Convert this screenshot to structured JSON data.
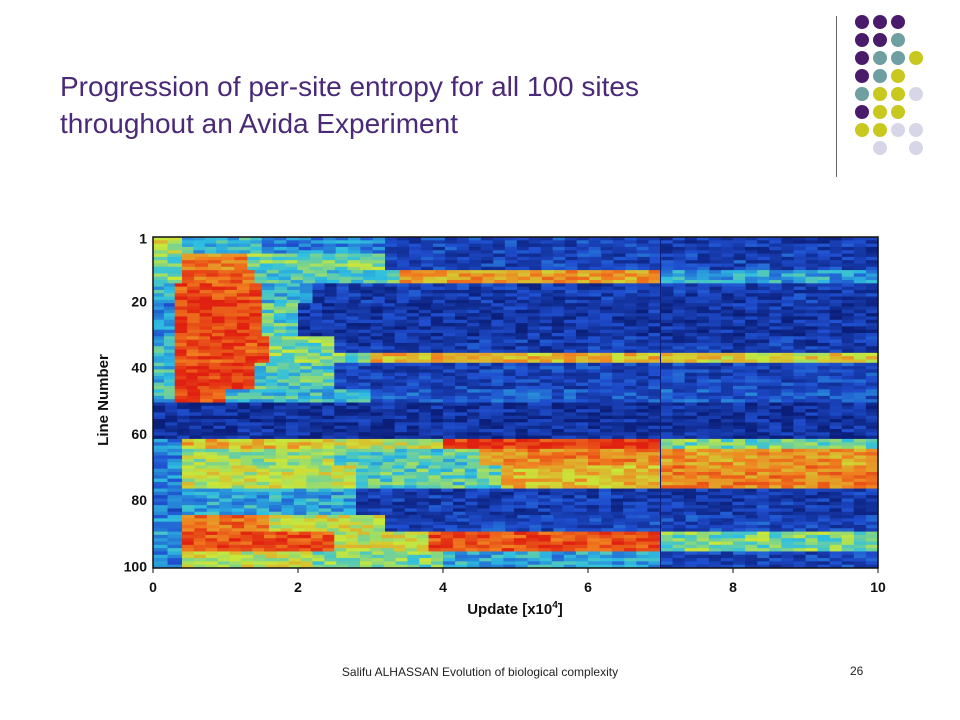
{
  "slide": {
    "title": "Progression of per-site entropy for all 100 sites throughout an Avida Experiment",
    "footer": "Salifu ALHASSAN Evolution of biological complexity",
    "page_number": "26"
  },
  "decor": {
    "dot_colors": {
      "purple": "#4a1a6b",
      "teal": "#6f9fa0",
      "olive": "#c8c81e",
      "lavender": "#d6d6e8"
    },
    "dot_grid": [
      [
        "purple",
        "purple",
        "purple",
        ""
      ],
      [
        "purple",
        "purple",
        "teal",
        ""
      ],
      [
        "purple",
        "teal",
        "teal",
        "olive"
      ],
      [
        "purple",
        "teal",
        "olive",
        ""
      ],
      [
        "teal",
        "olive",
        "olive",
        "lavender"
      ],
      [
        "purple",
        "olive",
        "olive",
        ""
      ],
      [
        "olive",
        "olive",
        "lavender",
        "lavender"
      ],
      [
        "",
        "lavender",
        "",
        "lavender"
      ]
    ]
  },
  "chart_data": {
    "type": "heatmap",
    "title": "",
    "xlabel": "Update [x10⁴]",
    "ylabel": "Line Number",
    "x_ticks": [
      "0",
      "2",
      "4",
      "6",
      "8",
      "10"
    ],
    "y_ticks": [
      "1",
      "20",
      "40",
      "60",
      "80",
      "100"
    ],
    "xlim": [
      0,
      10
    ],
    "ylim": [
      1,
      100
    ],
    "colormap": [
      "#0b1f7a",
      "#1f4fd0",
      "#2fbfe0",
      "#c8e83a",
      "#f08020",
      "#e02010"
    ],
    "cells_note": "entropy per site vs update, estimated bands",
    "bands": [
      {
        "lines": [
          1,
          5
        ],
        "segments": [
          [
            0,
            0.4,
            0.6
          ],
          [
            0.4,
            1.5,
            0.4
          ],
          [
            1.5,
            3.2,
            0.3
          ],
          [
            3.2,
            7,
            0.15
          ],
          [
            7,
            10,
            0.12
          ]
        ]
      },
      {
        "lines": [
          6,
          10
        ],
        "segments": [
          [
            0,
            0.4,
            0.5
          ],
          [
            0.4,
            1.3,
            0.8
          ],
          [
            1.3,
            3.2,
            0.5
          ],
          [
            3.2,
            10,
            0.15
          ]
        ]
      },
      {
        "lines": [
          11,
          14
        ],
        "segments": [
          [
            0,
            0.4,
            0.5
          ],
          [
            0.4,
            1.4,
            0.85
          ],
          [
            1.4,
            3.4,
            0.45
          ],
          [
            3.4,
            7,
            0.75
          ],
          [
            7,
            10,
            0.35
          ]
        ]
      },
      {
        "lines": [
          15,
          20
        ],
        "segments": [
          [
            0,
            0.3,
            0.4
          ],
          [
            0.3,
            1.5,
            0.9
          ],
          [
            1.5,
            2.2,
            0.4
          ],
          [
            2.2,
            10,
            0.12
          ]
        ]
      },
      {
        "lines": [
          21,
          30
        ],
        "segments": [
          [
            0,
            0.3,
            0.3
          ],
          [
            0.3,
            1.5,
            0.95
          ],
          [
            1.5,
            2.0,
            0.45
          ],
          [
            2.0,
            10,
            0.1
          ]
        ]
      },
      {
        "lines": [
          31,
          35
        ],
        "segments": [
          [
            0,
            0.3,
            0.4
          ],
          [
            0.3,
            1.6,
            0.9
          ],
          [
            1.6,
            2.5,
            0.5
          ],
          [
            2.5,
            10,
            0.12
          ]
        ]
      },
      {
        "lines": [
          36,
          38
        ],
        "segments": [
          [
            0,
            0.3,
            0.4
          ],
          [
            0.3,
            1.6,
            0.9
          ],
          [
            1.6,
            3.0,
            0.5
          ],
          [
            3.0,
            7,
            0.7
          ],
          [
            7,
            10,
            0.65
          ]
        ]
      },
      {
        "lines": [
          39,
          46
        ],
        "segments": [
          [
            0,
            0.3,
            0.4
          ],
          [
            0.3,
            1.4,
            0.95
          ],
          [
            1.4,
            2.5,
            0.45
          ],
          [
            2.5,
            10,
            0.15
          ]
        ]
      },
      {
        "lines": [
          47,
          50
        ],
        "segments": [
          [
            0,
            0.3,
            0.4
          ],
          [
            0.3,
            1.0,
            0.9
          ],
          [
            1.0,
            3.0,
            0.4
          ],
          [
            3.0,
            10,
            0.2
          ]
        ]
      },
      {
        "lines": [
          51,
          61
        ],
        "segments": [
          [
            0,
            10,
            0.08
          ]
        ]
      },
      {
        "lines": [
          62,
          64
        ],
        "segments": [
          [
            0,
            0.4,
            0.3
          ],
          [
            0.4,
            2.5,
            0.7
          ],
          [
            2.5,
            4.0,
            0.6
          ],
          [
            4.0,
            7,
            0.95
          ],
          [
            7,
            10,
            0.5
          ]
        ]
      },
      {
        "lines": [
          65,
          69
        ],
        "segments": [
          [
            0,
            0.4,
            0.3
          ],
          [
            0.4,
            2.5,
            0.55
          ],
          [
            2.5,
            4.5,
            0.45
          ],
          [
            4.5,
            7,
            0.8
          ],
          [
            7,
            10,
            0.75
          ]
        ]
      },
      {
        "lines": [
          70,
          76
        ],
        "segments": [
          [
            0,
            0.4,
            0.3
          ],
          [
            0.4,
            2.8,
            0.6
          ],
          [
            2.8,
            4.8,
            0.45
          ],
          [
            4.8,
            7,
            0.7
          ],
          [
            7,
            10,
            0.8
          ]
        ]
      },
      {
        "lines": [
          77,
          84
        ],
        "segments": [
          [
            0,
            0.4,
            0.25
          ],
          [
            0.4,
            2.8,
            0.35
          ],
          [
            2.8,
            10,
            0.12
          ]
        ]
      },
      {
        "lines": [
          85,
          89
        ],
        "segments": [
          [
            0,
            0.4,
            0.3
          ],
          [
            0.4,
            1.6,
            0.85
          ],
          [
            1.6,
            3.2,
            0.6
          ],
          [
            3.2,
            10,
            0.15
          ]
        ]
      },
      {
        "lines": [
          90,
          95
        ],
        "segments": [
          [
            0,
            0.4,
            0.35
          ],
          [
            0.4,
            2.5,
            0.9
          ],
          [
            2.5,
            3.8,
            0.6
          ],
          [
            3.8,
            7,
            0.9
          ],
          [
            7,
            10,
            0.5
          ]
        ]
      },
      {
        "lines": [
          96,
          100
        ],
        "segments": [
          [
            0,
            0.4,
            0.3
          ],
          [
            0.4,
            2.2,
            0.6
          ],
          [
            2.2,
            4.0,
            0.5
          ],
          [
            4.0,
            7,
            0.35
          ],
          [
            7,
            10,
            0.15
          ]
        ]
      }
    ]
  }
}
